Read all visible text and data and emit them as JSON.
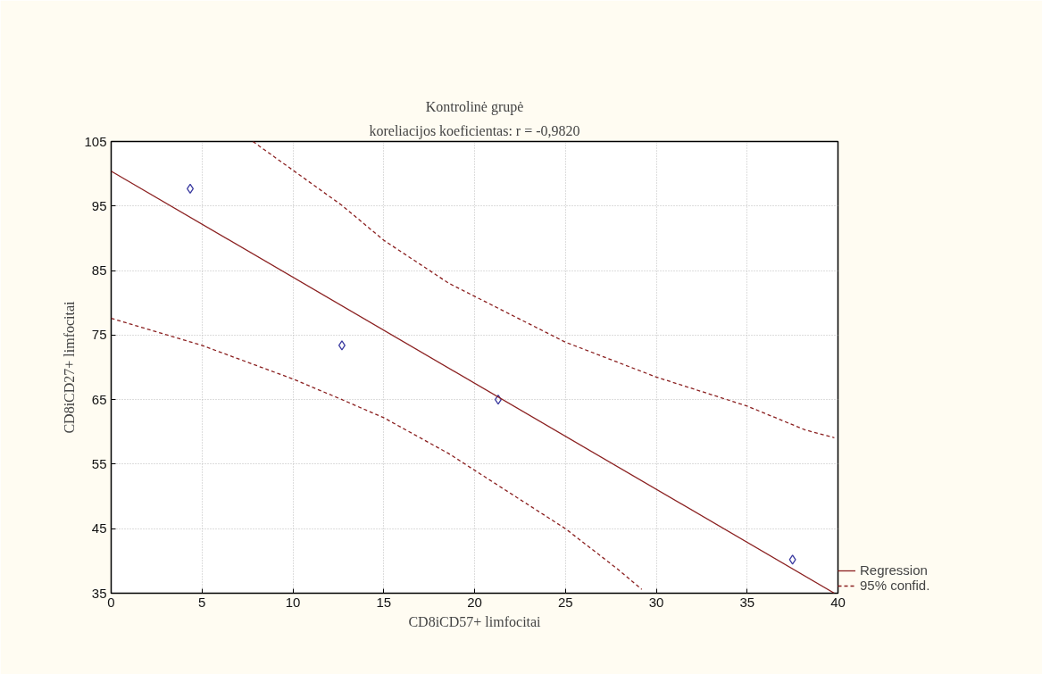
{
  "chart_data": {
    "type": "scatter",
    "title": "Kontrolinė grupė",
    "subtitle": "koreliacijos koeficientas: r = -0,9820",
    "xlabel": "CD8iCD57+ limfocitai",
    "ylabel": "CD8iCD27+ limfocitai",
    "xlim": [
      0,
      40
    ],
    "xticks": [
      0,
      5,
      10,
      15,
      20,
      25,
      30,
      35,
      40
    ],
    "ylim": [
      35,
      105
    ],
    "yticks": [
      35,
      45,
      55,
      65,
      75,
      85,
      95,
      105
    ],
    "grid": true,
    "legend": "bottom right",
    "series": [
      {
        "marker": "diamond",
        "color": "#3a3aa0",
        "x": [
          4.35,
          12.7,
          21.3,
          37.5
        ],
        "values": [
          97.7,
          73.4,
          65.0,
          40.2
        ]
      },
      {
        "type": "line",
        "name": "Regression",
        "color": "#8b2020",
        "line_style": "solid",
        "x": [
          0,
          39.8
        ],
        "values": [
          100.4,
          35.0
        ]
      },
      {
        "type": "line",
        "name": "95% confid.",
        "color": "#8b2020",
        "line_style": "dashed",
        "x": [
          7.8,
          12.7,
          15,
          18.6,
          25,
          30,
          35,
          38.2,
          39.8
        ],
        "values": [
          105,
          95.1,
          89.7,
          83.0,
          73.9,
          68.5,
          64.0,
          60.3,
          59.1
        ]
      },
      {
        "type": "line",
        "color": "#8b2020",
        "line_style": "dashed",
        "x": [
          0,
          5,
          10,
          12.7,
          15,
          18.6,
          21.3,
          25,
          27.8,
          29.2
        ],
        "values": [
          77.6,
          73.4,
          68.2,
          65.0,
          62.2,
          56.6,
          51.7,
          45.0,
          38.9,
          35.6
        ]
      }
    ]
  }
}
